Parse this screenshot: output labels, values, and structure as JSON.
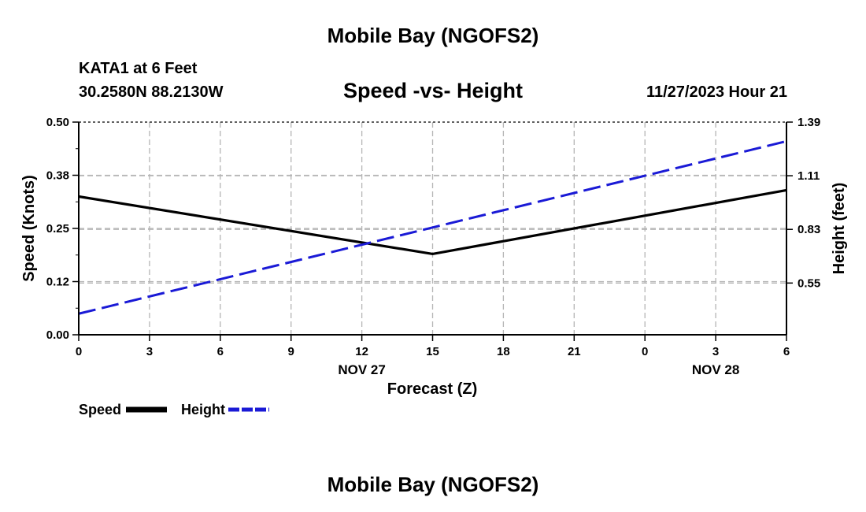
{
  "header": {
    "title": "Mobile Bay (NGOFS2)",
    "station": "KATA1 at 6 Feet",
    "coordinates": "30.2580N  88.2130W",
    "datetime": "11/27/2023 Hour 21"
  },
  "footer": {
    "title": "Mobile Bay (NGOFS2)"
  },
  "colors": {
    "speed": "#000000",
    "height": "#1a1ad6",
    "grid": "#b5b5b5"
  },
  "chart_data": {
    "type": "line",
    "title": "Speed -vs- Height",
    "xlabel": "Forecast (Z)",
    "ylabel": "Speed (Knots)",
    "y2label": "Height (feet)",
    "x_hours": [
      0,
      3,
      6,
      9,
      12,
      15,
      18,
      21,
      24,
      27,
      30
    ],
    "x_tick_labels": [
      "0",
      "3",
      "6",
      "9",
      "12",
      "15",
      "18",
      "21",
      "0",
      "3",
      "6"
    ],
    "date_labels": [
      {
        "label": "NOV 27",
        "hour": 12
      },
      {
        "label": "NOV 28",
        "hour": 27
      }
    ],
    "xlim": [
      0,
      30
    ],
    "ylim": [
      0,
      0.5
    ],
    "y_ticks": [
      0.0,
      0.125,
      0.25,
      0.375,
      0.5
    ],
    "y_tick_labels": [
      "0.00",
      "0.12",
      "0.25",
      "0.38",
      "0.50"
    ],
    "y2lim": [
      0.28,
      1.39
    ],
    "y2_ticks": [
      0.55,
      0.83,
      1.11,
      1.39
    ],
    "y2_tick_labels": [
      "0.55",
      "0.83",
      "1.11",
      "1.39"
    ],
    "grid": true,
    "legend_position": "bottom-left",
    "series": [
      {
        "name": "Speed",
        "axis": "left",
        "style": "solid",
        "x": [
          0,
          15,
          30
        ],
        "values": [
          0.325,
          0.19,
          0.34
        ]
      },
      {
        "name": "Height",
        "axis": "right",
        "style": "dashed",
        "x": [
          0,
          30
        ],
        "values": [
          0.39,
          1.29
        ]
      }
    ]
  }
}
